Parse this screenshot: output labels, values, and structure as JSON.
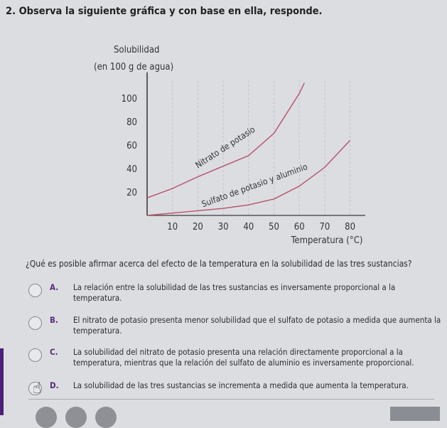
{
  "question": {
    "title": "2. Observa la siguiente gráfica y con base en ella, responde.",
    "prompt": "¿Qué es posible afirmar acerca del efecto de la temperatura en la solubilidad de las tres sustancias?",
    "options": [
      {
        "letter": "A.",
        "text": "La relación entre la solubilidad de las tres sustancias es inversamente proporcional a la temperatura."
      },
      {
        "letter": "B.",
        "text": "El nitrato de potasio presenta menor solubilidad que el sulfato de potasio a medida que aumenta la temperatura."
      },
      {
        "letter": "C.",
        "text": "La solubilidad del nitrato de potasio presenta una relación directamente proporcional a la temperatura, mientras que la relación del sulfato de aluminio es inversamente proporcional."
      },
      {
        "letter": "D.",
        "text": "La solubilidad de las tres sustancias se incrementa a medida que aumenta la temperatura."
      }
    ]
  },
  "colors": {
    "curve": "#b8506a",
    "accent": "#5a2a7a",
    "stripe": "#4b1f7a"
  },
  "chart_data": {
    "type": "line",
    "ylabel_line1": "Solubilidad",
    "ylabel_line2": "(en 100 g de agua)",
    "xlabel": "Temperatura (°C)",
    "xticks": [
      10,
      20,
      30,
      40,
      50,
      60,
      70,
      80
    ],
    "yticks": [
      20,
      40,
      60,
      80,
      100
    ],
    "xlim": [
      0,
      85
    ],
    "ylim": [
      0,
      120
    ],
    "grid": "vertical dashed",
    "series": [
      {
        "name": "Nitrato de potasio",
        "x": [
          0,
          10,
          20,
          30,
          40,
          50,
          60,
          62
        ],
        "y": [
          15,
          23,
          33,
          42,
          51,
          70,
          104,
          113
        ]
      },
      {
        "name": "Sulfato de potasio y aluminio",
        "x": [
          0,
          10,
          20,
          30,
          40,
          50,
          60,
          70,
          80
        ],
        "y": [
          0,
          2,
          4,
          6,
          9,
          14,
          25,
          41,
          64
        ]
      }
    ]
  }
}
